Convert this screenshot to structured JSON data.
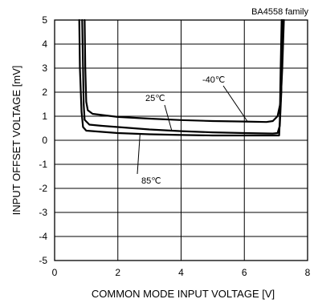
{
  "chart_data": {
    "type": "line",
    "title": "BA4558  family",
    "xlabel": "COMMON MODE INPUT VOLTAGE [V]",
    "ylabel": "INPUT OFFSET VOLTAGE [mV]",
    "xlim": [
      0,
      8
    ],
    "ylim": [
      -5,
      5
    ],
    "x_ticks": [
      0,
      2,
      4,
      6,
      8
    ],
    "y_ticks": [
      -5,
      -4,
      -3,
      -2,
      -1,
      0,
      1,
      2,
      3,
      4,
      5
    ],
    "grid": true,
    "series": [
      {
        "name": "-40℃",
        "points": [
          [
            0.95,
            5
          ],
          [
            0.97,
            3
          ],
          [
            1.0,
            1.6
          ],
          [
            1.05,
            1.25
          ],
          [
            1.2,
            1.1
          ],
          [
            1.5,
            1.05
          ],
          [
            2,
            0.97
          ],
          [
            3,
            0.9
          ],
          [
            4,
            0.84
          ],
          [
            5,
            0.8
          ],
          [
            6,
            0.78
          ],
          [
            6.7,
            0.76
          ],
          [
            6.9,
            0.8
          ],
          [
            7.05,
            1.0
          ],
          [
            7.15,
            1.6
          ],
          [
            7.2,
            3
          ],
          [
            7.25,
            5
          ]
        ]
      },
      {
        "name": "25℃",
        "points": [
          [
            0.87,
            5
          ],
          [
            0.9,
            3
          ],
          [
            0.92,
            1.5
          ],
          [
            0.95,
            0.85
          ],
          [
            1.1,
            0.65
          ],
          [
            1.5,
            0.6
          ],
          [
            2,
            0.55
          ],
          [
            3,
            0.45
          ],
          [
            4,
            0.38
          ],
          [
            5,
            0.33
          ],
          [
            6,
            0.3
          ],
          [
            6.9,
            0.28
          ],
          [
            7.05,
            0.3
          ],
          [
            7.12,
            0.6
          ],
          [
            7.17,
            2
          ],
          [
            7.2,
            5
          ]
        ]
      },
      {
        "name": "85℃",
        "points": [
          [
            0.78,
            5
          ],
          [
            0.8,
            3
          ],
          [
            0.85,
            1.2
          ],
          [
            0.9,
            0.55
          ],
          [
            1.0,
            0.4
          ],
          [
            1.5,
            0.35
          ],
          [
            2,
            0.3
          ],
          [
            3,
            0.25
          ],
          [
            4,
            0.22
          ],
          [
            5,
            0.2
          ],
          [
            6,
            0.2
          ],
          [
            7.0,
            0.2
          ],
          [
            7.1,
            0.2
          ],
          [
            7.12,
            0.8
          ],
          [
            7.15,
            3
          ],
          [
            7.18,
            5
          ]
        ]
      }
    ],
    "annotations": [
      {
        "text": "-40℃",
        "target": [
          6.1,
          0.78
        ]
      },
      {
        "text": "25℃",
        "target": [
          3.7,
          0.42
        ]
      },
      {
        "text": "85℃",
        "target": [
          2.7,
          0.24
        ]
      }
    ]
  }
}
